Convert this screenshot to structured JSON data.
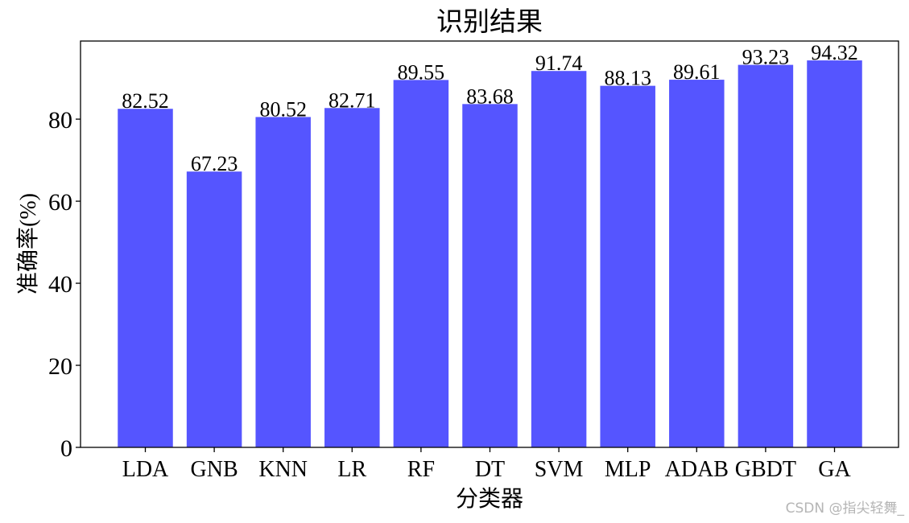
{
  "chart_data": {
    "type": "bar",
    "title": "识别结果",
    "xlabel": "分类器",
    "ylabel": "准确率(%)",
    "categories": [
      "LDA",
      "GNB",
      "KNN",
      "LR",
      "RF",
      "DT",
      "SVM",
      "MLP",
      "ADAB",
      "GBDT",
      "GA"
    ],
    "values": [
      82.52,
      67.23,
      80.52,
      82.71,
      89.55,
      83.68,
      91.74,
      88.13,
      89.61,
      93.23,
      94.32
    ],
    "data_labels": [
      "82.52",
      "67.23",
      "80.52",
      "82.71",
      "89.55",
      "83.68",
      "91.74",
      "88.13",
      "89.61",
      "93.23",
      "94.32"
    ],
    "yticks": [
      0,
      20,
      40,
      60,
      80
    ],
    "ylim": [
      0,
      99.04
    ],
    "bar_color": "#5555ff",
    "grid": false,
    "legend": false
  },
  "watermark": "CSDN @指尖轻舞_"
}
